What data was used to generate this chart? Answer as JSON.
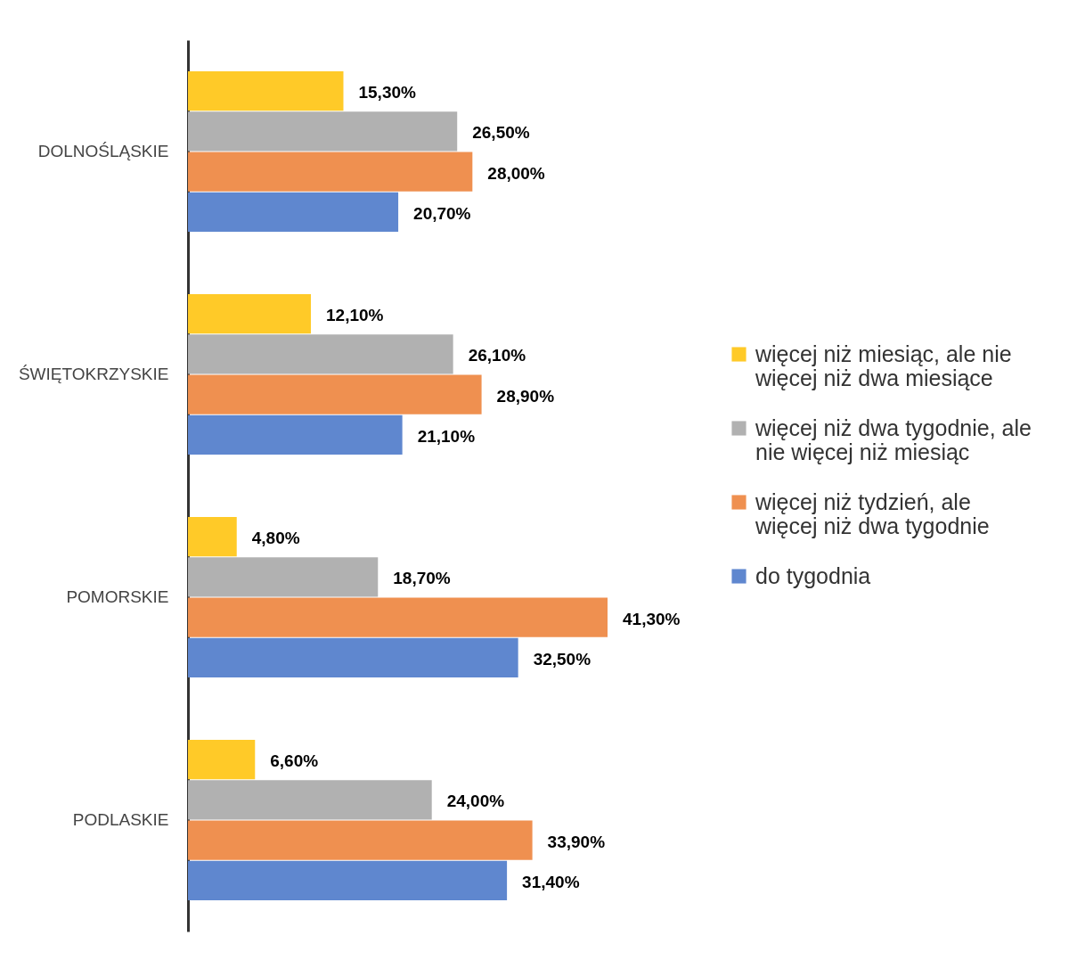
{
  "chart_data": {
    "type": "bar",
    "orientation": "horizontal",
    "categories": [
      "DOLNOŚLĄSKIE",
      "ŚWIĘTOKRZYSKIE",
      "POMORSKIE",
      "PODLASKIE"
    ],
    "legend": "right",
    "series": [
      {
        "name": "więcej niż miesiąc, ale nie więcej niż dwa miesiące",
        "color": "#ffca28",
        "values": [
          15.3,
          12.1,
          4.8,
          6.6
        ],
        "value_labels": [
          "15,30%",
          "12,10%",
          "4,80%",
          "6,60%"
        ]
      },
      {
        "name": "więcej niż dwa tygodnie, ale nie więcej niż miesiąc",
        "color": "#b1b1b1",
        "values": [
          26.5,
          26.1,
          18.7,
          24.0
        ],
        "value_labels": [
          "26,50%",
          "26,10%",
          "18,70%",
          "24,00%"
        ]
      },
      {
        "name": "więcej niż tydzień, ale więcej niż dwa tygodnie",
        "color": "#ef9050",
        "values": [
          28.0,
          28.9,
          41.3,
          33.9
        ],
        "value_labels": [
          "28,00%",
          "28,90%",
          "41,30%",
          "33,90%"
        ]
      },
      {
        "name": "do tygodnia",
        "color": "#5f87cf",
        "values": [
          20.7,
          21.1,
          32.5,
          31.4
        ],
        "value_labels": [
          "20,70%",
          "21,10%",
          "32,50%",
          "31,40%"
        ]
      }
    ]
  }
}
